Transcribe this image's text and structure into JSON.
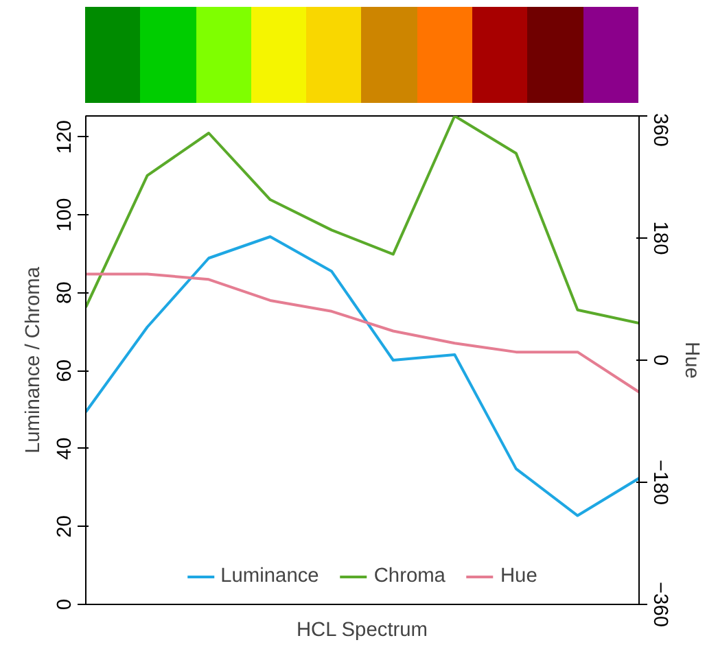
{
  "chart_data": {
    "type": "line",
    "xlabel": "HCL Spectrum",
    "ylabel": "Luminance / Chroma",
    "y2label": "Hue",
    "categories": [
      null,
      null,
      null,
      null,
      null,
      null,
      null,
      null,
      null,
      null
    ],
    "colors": [
      "#008b00",
      "#00cd00",
      "#7fff00",
      "#f5f500",
      "#f9d700",
      "#cd8500",
      "#ff7400",
      "#a80000",
      "#700000",
      "#8b008b"
    ],
    "ylim": [
      0,
      125.4
    ],
    "yticks": [
      0,
      20,
      40,
      60,
      80,
      100,
      120
    ],
    "y2lim": [
      -360,
      360
    ],
    "y2ticks": [
      -360,
      -180,
      0,
      180,
      360
    ],
    "grid": false,
    "legend": "bottom",
    "series": [
      {
        "name": "Luminance",
        "color": "#1ea7e3",
        "values": [
          49.4,
          71.2,
          88.9,
          94.4,
          85.5,
          62.7,
          64.1,
          34.8,
          22.8,
          32.4
        ]
      },
      {
        "name": "Chroma",
        "color": "#5aaa2a",
        "values": [
          76.3,
          110.1,
          121.0,
          103.9,
          96.1,
          89.9,
          125.4,
          115.8,
          75.6,
          72.2
        ]
      },
      {
        "name": "Hue",
        "color": "#e57d92",
        "axis": "y2",
        "values": [
          127,
          127,
          119,
          88,
          72,
          43,
          25,
          12,
          12,
          -47
        ]
      }
    ]
  }
}
